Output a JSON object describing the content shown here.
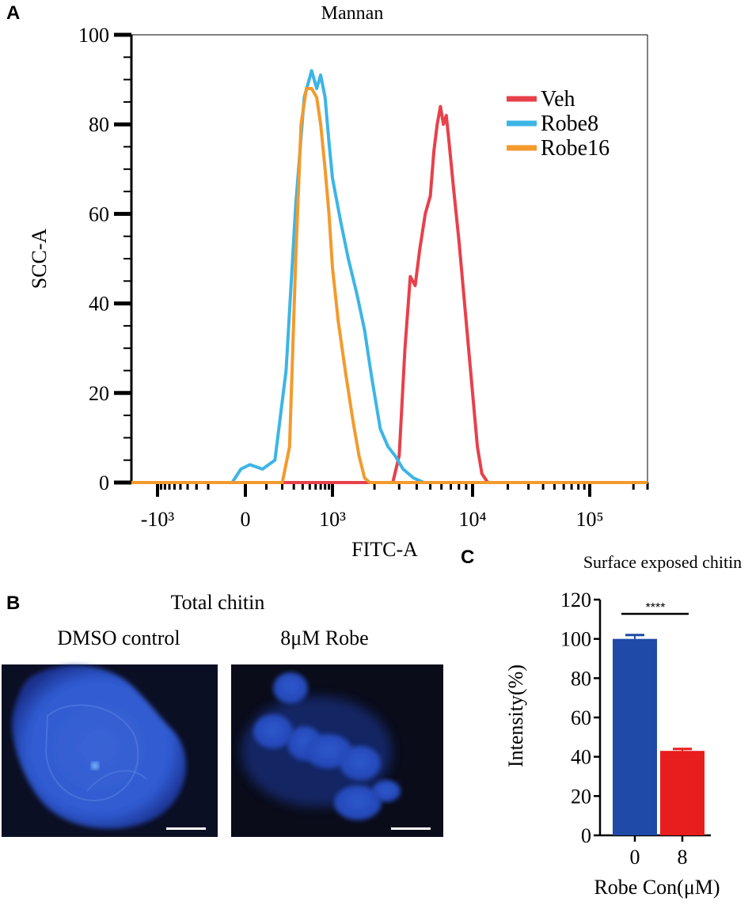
{
  "panels": {
    "a_letter": "A",
    "b_letter": "B",
    "c_letter": "C"
  },
  "panel_b": {
    "title": "Total chitin",
    "left_label": "DMSO control",
    "right_label": "8μM Robe",
    "image_bg": "#0a0c1a",
    "cell_color": "#2c55c8"
  },
  "chart_data": [
    {
      "type": "line",
      "title": "Mannan",
      "xlabel": "FITC-A",
      "ylabel": "SCC-A",
      "xscale": "biexponential",
      "xlim": [
        -2000,
        250000
      ],
      "ylim": [
        0,
        100
      ],
      "yticks": [
        0,
        20,
        40,
        60,
        80,
        100
      ],
      "xtick_values": [
        -1000,
        0,
        1000,
        10000,
        100000
      ],
      "xtick_labels": [
        "-10³",
        "0",
        "10³",
        "10⁴",
        "10⁵"
      ],
      "legend_placement": "top-right",
      "series": [
        {
          "name": "Veh",
          "color": "#e8404a",
          "x": [
            -2000,
            2700,
            3000,
            3300,
            3600,
            3900,
            4200,
            4600,
            5000,
            5300,
            5600,
            5900,
            6200,
            6500,
            6800,
            7300,
            8000,
            9000,
            10000,
            11000,
            12000,
            13500,
            250000
          ],
          "y": [
            0,
            0,
            6,
            30,
            46,
            44,
            52,
            60,
            64,
            74,
            80,
            84,
            80,
            82,
            76,
            66,
            54,
            36,
            20,
            8,
            2,
            0,
            0
          ]
        },
        {
          "name": "Robe8",
          "color": "#3cb5e5",
          "x": [
            -2000,
            -60,
            -20,
            20,
            80,
            150,
            230,
            320,
            420,
            530,
            620,
            700,
            800,
            900,
            1000,
            1150,
            1300,
            1500,
            1700,
            1900,
            2200,
            2500,
            2800,
            3200,
            3800,
            4500,
            250000
          ],
          "y": [
            0,
            0,
            3,
            4,
            3,
            5,
            25,
            62,
            86,
            92,
            88,
            91,
            86,
            76,
            68,
            58,
            50,
            42,
            34,
            24,
            12,
            8,
            6,
            3,
            1,
            0,
            0
          ]
        },
        {
          "name": "Robe16",
          "color": "#f39a2d",
          "x": [
            -2000,
            200,
            260,
            320,
            380,
            450,
            530,
            620,
            700,
            800,
            900,
            1000,
            1100,
            1250,
            1400,
            1550,
            1700,
            1850,
            250000
          ],
          "y": [
            0,
            0,
            8,
            50,
            80,
            88,
            88,
            86,
            80,
            70,
            60,
            48,
            36,
            24,
            14,
            6,
            1,
            0,
            0
          ]
        }
      ]
    },
    {
      "type": "bar",
      "title": "Surface exposed chitin",
      "xlabel": "Robe Con(μM)",
      "ylabel": "Intensity(%)",
      "categories": [
        "0",
        "8"
      ],
      "values": [
        100,
        43
      ],
      "errors": [
        2,
        1
      ],
      "colors": [
        "#1f4aa8",
        "#e81d1d"
      ],
      "ylim": [
        0,
        120
      ],
      "yticks": [
        0,
        20,
        40,
        60,
        80,
        100,
        120
      ],
      "significance": "****"
    }
  ]
}
